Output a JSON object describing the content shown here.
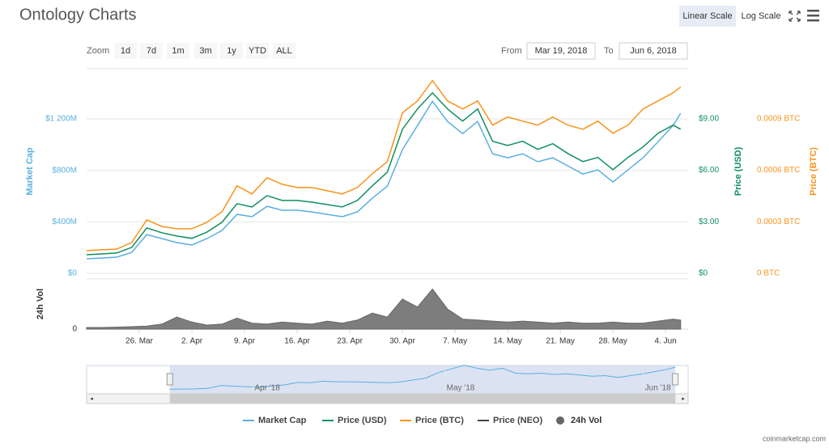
{
  "header": {
    "title": "Ontology Charts",
    "scale_buttons": [
      "Linear Scale",
      "Log Scale"
    ],
    "zoom": {
      "label": "Zoom",
      "buttons": [
        "1d",
        "7d",
        "1m",
        "3m",
        "1y",
        "YTD",
        "ALL"
      ]
    },
    "range": {
      "from_label": "From",
      "from": "Mar 19, 2018",
      "to_label": "To",
      "to": "Jun 6, 2018"
    },
    "credit": "coinmarketcap.com"
  },
  "chart_data": {
    "type": "line",
    "x": [
      "2018-03-19",
      "2018-03-21",
      "2018-03-23",
      "2018-03-25",
      "2018-03-27",
      "2018-03-29",
      "2018-03-31",
      "2018-04-02",
      "2018-04-04",
      "2018-04-06",
      "2018-04-08",
      "2018-04-10",
      "2018-04-12",
      "2018-04-14",
      "2018-04-16",
      "2018-04-18",
      "2018-04-20",
      "2018-04-22",
      "2018-04-24",
      "2018-04-26",
      "2018-04-28",
      "2018-04-30",
      "2018-05-02",
      "2018-05-04",
      "2018-05-06",
      "2018-05-08",
      "2018-05-10",
      "2018-05-12",
      "2018-05-14",
      "2018-05-16",
      "2018-05-18",
      "2018-05-20",
      "2018-05-22",
      "2018-05-24",
      "2018-05-26",
      "2018-05-28",
      "2018-05-30",
      "2018-06-01",
      "2018-06-03",
      "2018-06-05",
      "2018-06-06"
    ],
    "xlim": [
      "2018-03-19",
      "2018-06-07"
    ],
    "xticks": [
      {
        "value": "2018-03-26",
        "label": "26. Mar"
      },
      {
        "value": "2018-04-02",
        "label": "2. Apr"
      },
      {
        "value": "2018-04-09",
        "label": "9. Apr"
      },
      {
        "value": "2018-04-16",
        "label": "16. Apr"
      },
      {
        "value": "2018-04-23",
        "label": "23. Apr"
      },
      {
        "value": "2018-04-30",
        "label": "30. Apr"
      },
      {
        "value": "2018-05-07",
        "label": "7. May"
      },
      {
        "value": "2018-05-14",
        "label": "14. May"
      },
      {
        "value": "2018-05-21",
        "label": "21. May"
      },
      {
        "value": "2018-05-28",
        "label": "28. May"
      },
      {
        "value": "2018-06-04",
        "label": "4. Jun"
      }
    ],
    "ylabel": "Market Cap",
    "ylim": [
      0,
      1590000000
    ],
    "yticks": [
      {
        "value": 0,
        "label": "$0"
      },
      {
        "value": 400000000,
        "label": "$400M"
      },
      {
        "value": 800000000,
        "label": "$800M"
      },
      {
        "value": 1200000000,
        "label": "$1 200M"
      }
    ],
    "y2label": "Price (USD)",
    "y2lim": [
      0,
      11.9
    ],
    "y2ticks": [
      {
        "value": 0,
        "label": "$0"
      },
      {
        "value": 3,
        "label": "$3.00"
      },
      {
        "value": 6,
        "label": "$6.00"
      },
      {
        "value": 9,
        "label": "$9.00"
      }
    ],
    "y3label": "Price (BTC)",
    "y3lim": [
      0,
      0.00119
    ],
    "y3ticks": [
      {
        "value": 0,
        "label": "0 BTC"
      },
      {
        "value": 0.0003,
        "label": "0.0003 BTC"
      },
      {
        "value": 0.0006,
        "label": "0.0006 BTC"
      },
      {
        "value": 0.0009,
        "label": "0.0009 BTC"
      }
    ],
    "vollabel": "24h Vol",
    "vollim": [
      0,
      250000000
    ],
    "volticks": [
      0
    ],
    "series": [
      {
        "name": "Market Cap",
        "color": "#5aafe0",
        "axis": "y",
        "values": [
          113000000,
          119000000,
          126000000,
          163000000,
          301000000,
          270000000,
          239000000,
          220000000,
          270000000,
          333000000,
          458000000,
          440000000,
          521000000,
          490000000,
          490000000,
          477000000,
          458000000,
          440000000,
          477000000,
          584000000,
          678000000,
          961000000,
          1149000000,
          1337000000,
          1180000000,
          1086000000,
          1180000000,
          929000000,
          898000000,
          929000000,
          867000000,
          898000000,
          835000000,
          772000000,
          804000000,
          710000000,
          804000000,
          898000000,
          1023000000,
          1149000000,
          1243000000
        ]
      },
      {
        "name": "Price (USD)",
        "color": "#0f8f5e",
        "axis": "y2",
        "values": [
          1.08,
          1.13,
          1.18,
          1.51,
          2.64,
          2.36,
          2.17,
          2.03,
          2.4,
          2.97,
          4.05,
          3.86,
          4.52,
          4.24,
          4.24,
          4.14,
          4.0,
          3.86,
          4.24,
          5.09,
          5.89,
          8.38,
          9.56,
          10.5,
          9.56,
          8.85,
          9.56,
          7.68,
          7.44,
          7.68,
          7.21,
          7.54,
          6.97,
          6.5,
          6.74,
          6.03,
          6.74,
          7.35,
          8.15,
          8.62,
          8.38
        ]
      },
      {
        "name": "Price (BTC)",
        "color": "#f7931a",
        "axis": "y3",
        "values": [
          0.000132,
          0.000137,
          0.000141,
          0.000179,
          0.000311,
          0.000273,
          0.000259,
          0.000259,
          0.000297,
          0.000358,
          0.000509,
          0.000462,
          0.000556,
          0.000518,
          0.000499,
          0.000499,
          0.00048,
          0.000462,
          0.000499,
          0.000579,
          0.00065,
          0.000933,
          0.001003,
          0.001121,
          0.001003,
          0.000956,
          0.001003,
          0.000862,
          0.000909,
          0.000885,
          0.000862,
          0.000909,
          0.000862,
          0.000838,
          0.000885,
          0.000815,
          0.000862,
          0.000956,
          0.001003,
          0.00105,
          0.001083
        ]
      },
      {
        "name": "Price (NEO)",
        "color": "#444444",
        "axis": "y",
        "visible": false,
        "values": [
          null,
          null,
          null,
          null,
          null,
          null,
          null,
          null,
          null,
          null,
          null,
          null,
          null,
          null,
          null,
          null,
          null,
          null,
          null,
          null,
          null,
          null,
          null,
          null,
          null,
          null,
          null,
          null,
          null,
          null,
          null,
          null,
          null,
          null,
          null,
          null,
          null,
          null,
          null,
          null,
          null
        ]
      },
      {
        "name": "24h Vol",
        "color": "#666666",
        "axis": "vol",
        "values": [
          8000000,
          8000000,
          10000000,
          12000000,
          15000000,
          25000000,
          60000000,
          35000000,
          20000000,
          25000000,
          55000000,
          30000000,
          25000000,
          35000000,
          30000000,
          25000000,
          40000000,
          30000000,
          45000000,
          80000000,
          60000000,
          150000000,
          110000000,
          200000000,
          100000000,
          50000000,
          45000000,
          40000000,
          35000000,
          40000000,
          35000000,
          30000000,
          35000000,
          30000000,
          30000000,
          35000000,
          30000000,
          30000000,
          40000000,
          50000000,
          45000000
        ]
      }
    ],
    "navigator_xlim": [
      "2018-03-06",
      "2018-06-08"
    ],
    "navigator_ticks": [
      {
        "value": "2018-04-01",
        "label": "Apr '18"
      },
      {
        "value": "2018-05-01",
        "label": "May '18"
      },
      {
        "value": "2018-06-01",
        "label": "Jun '18"
      }
    ]
  }
}
